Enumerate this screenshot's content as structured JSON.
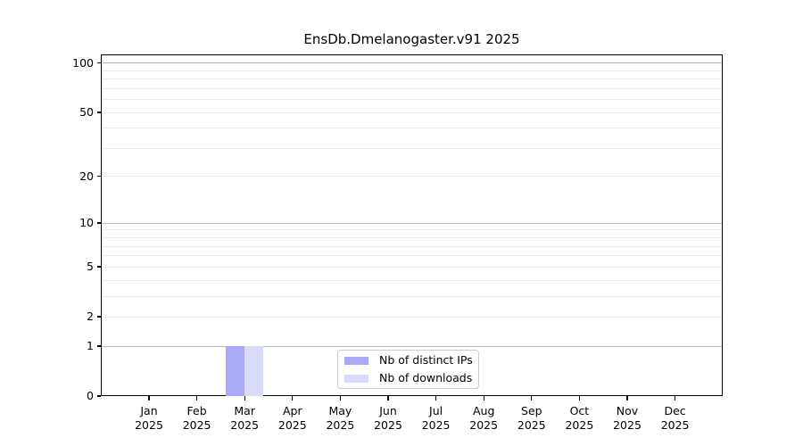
{
  "chart_data": {
    "type": "bar",
    "title": "EnsDb.Dmelanogaster.v91 2025",
    "x_axis": {
      "months": [
        "Jan",
        "Feb",
        "Mar",
        "Apr",
        "May",
        "Jun",
        "Jul",
        "Aug",
        "Sep",
        "Oct",
        "Nov",
        "Dec"
      ],
      "year": "2025"
    },
    "y_axis": {
      "scale": "log1p",
      "tick_values": [
        0,
        1,
        2,
        5,
        10,
        20,
        50,
        100
      ],
      "minor_gridlines": [
        2,
        3,
        4,
        5,
        6,
        7,
        8,
        9,
        20,
        30,
        40,
        50,
        60,
        70,
        80,
        90
      ],
      "decade_gridlines": [
        1,
        10,
        100
      ],
      "ylim": [
        0,
        113
      ]
    },
    "series": [
      {
        "name": "Nb of distinct IPs",
        "color": "#a9a9f7",
        "values": [
          0,
          0,
          1,
          0,
          0,
          0,
          0,
          0,
          0,
          0,
          0,
          0
        ]
      },
      {
        "name": "Nb of downloads",
        "color": "#d9d9fa",
        "values": [
          0,
          0,
          1,
          0,
          0,
          0,
          0,
          0,
          0,
          0,
          0,
          0
        ]
      }
    ],
    "legend": {
      "position": "bottom-center",
      "grouping": "grouped-bars"
    }
  }
}
